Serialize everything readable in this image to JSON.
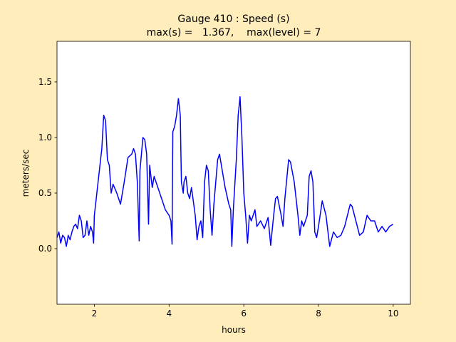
{
  "chart_data": {
    "type": "line",
    "title": "Gauge 410 : Speed (s)",
    "subtitle": "max(s) =   1.367,    max(level) = 7",
    "xlabel": "hours",
    "ylabel": "meters/sec",
    "xlim": [
      1,
      10.46
    ],
    "ylim": [
      -0.5,
      1.865
    ],
    "xticks": [
      2,
      4,
      6,
      8,
      10
    ],
    "yticks": [
      {
        "value": 0,
        "label": "0.0"
      },
      {
        "value": 0.5,
        "label": "0.5"
      },
      {
        "value": 1,
        "label": "1.0"
      },
      {
        "value": 1.5,
        "label": "1.5"
      }
    ],
    "grid": false,
    "x": [
      1.0,
      1.05,
      1.1,
      1.15,
      1.2,
      1.25,
      1.3,
      1.35,
      1.4,
      1.45,
      1.5,
      1.55,
      1.6,
      1.65,
      1.7,
      1.75,
      1.8,
      1.85,
      1.9,
      1.95,
      1.98,
      2.0,
      2.05,
      2.1,
      2.2,
      2.25,
      2.3,
      2.35,
      2.4,
      2.45,
      2.5,
      2.6,
      2.7,
      2.8,
      2.9,
      3.0,
      3.05,
      3.1,
      3.15,
      3.2,
      3.22,
      3.3,
      3.35,
      3.4,
      3.45,
      3.48,
      3.55,
      3.6,
      3.7,
      3.8,
      3.9,
      4.0,
      4.05,
      4.08,
      4.1,
      4.15,
      4.2,
      4.25,
      4.3,
      4.33,
      4.38,
      4.4,
      4.45,
      4.5,
      4.55,
      4.6,
      4.7,
      4.75,
      4.8,
      4.85,
      4.9,
      4.95,
      5.0,
      5.05,
      5.1,
      5.15,
      5.2,
      5.3,
      5.35,
      5.4,
      5.5,
      5.6,
      5.65,
      5.68,
      5.72,
      5.8,
      5.85,
      5.9,
      5.95,
      6.0,
      6.05,
      6.1,
      6.15,
      6.2,
      6.3,
      6.35,
      6.45,
      6.55,
      6.65,
      6.72,
      6.8,
      6.85,
      6.9,
      7.0,
      7.05,
      7.1,
      7.2,
      7.25,
      7.35,
      7.45,
      7.5,
      7.55,
      7.6,
      7.7,
      7.75,
      7.8,
      7.85,
      7.9,
      7.95,
      8.0,
      8.1,
      8.2,
      8.3,
      8.4,
      8.5,
      8.6,
      8.7,
      8.85,
      8.9,
      9.0,
      9.1,
      9.2,
      9.3,
      9.4,
      9.5,
      9.6,
      9.7,
      9.8,
      9.9,
      10.0
    ],
    "series": [
      {
        "color": "#0000ff",
        "values": [
          0.1,
          0.15,
          0.05,
          0.12,
          0.1,
          0.02,
          0.12,
          0.08,
          0.15,
          0.2,
          0.22,
          0.18,
          0.3,
          0.25,
          0.1,
          0.12,
          0.25,
          0.12,
          0.2,
          0.15,
          0.05,
          0.3,
          0.45,
          0.6,
          0.9,
          1.2,
          1.15,
          0.8,
          0.75,
          0.5,
          0.58,
          0.5,
          0.4,
          0.6,
          0.82,
          0.85,
          0.9,
          0.85,
          0.6,
          0.07,
          0.7,
          1.0,
          0.98,
          0.85,
          0.22,
          0.75,
          0.55,
          0.65,
          0.55,
          0.45,
          0.35,
          0.3,
          0.25,
          0.04,
          1.05,
          1.1,
          1.2,
          1.35,
          1.2,
          0.6,
          0.5,
          0.6,
          0.65,
          0.5,
          0.45,
          0.55,
          0.3,
          0.08,
          0.2,
          0.25,
          0.1,
          0.6,
          0.75,
          0.7,
          0.35,
          0.12,
          0.4,
          0.8,
          0.85,
          0.75,
          0.55,
          0.4,
          0.35,
          0.02,
          0.35,
          0.8,
          1.2,
          1.367,
          1.0,
          0.5,
          0.3,
          0.05,
          0.3,
          0.25,
          0.35,
          0.2,
          0.25,
          0.18,
          0.28,
          0.03,
          0.3,
          0.45,
          0.47,
          0.3,
          0.2,
          0.45,
          0.8,
          0.78,
          0.6,
          0.3,
          0.12,
          0.25,
          0.2,
          0.3,
          0.65,
          0.7,
          0.6,
          0.15,
          0.1,
          0.2,
          0.43,
          0.3,
          0.02,
          0.15,
          0.1,
          0.12,
          0.2,
          0.4,
          0.38,
          0.25,
          0.12,
          0.15,
          0.3,
          0.25,
          0.25,
          0.15,
          0.2,
          0.15,
          0.2,
          0.22
        ]
      }
    ]
  }
}
